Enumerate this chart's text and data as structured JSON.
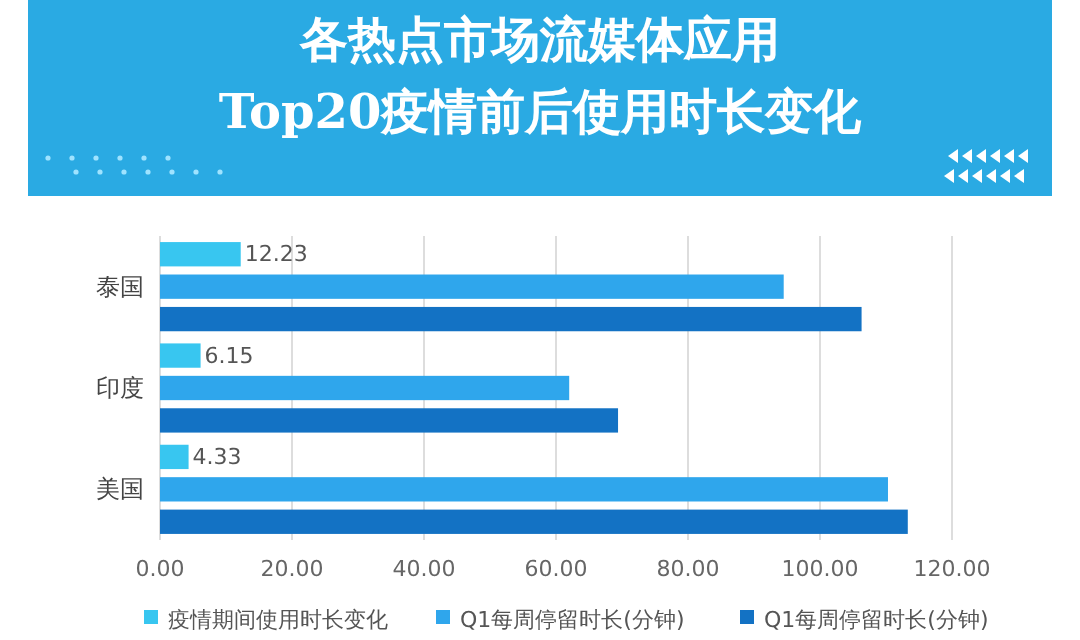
{
  "chart_data": {
    "type": "bar",
    "orientation": "horizontal",
    "title": "各热点市场流媒体应用",
    "subtitle": "Top20疫情前后使用时长变化",
    "categories": [
      "泰国",
      "印度",
      "美国"
    ],
    "series": [
      {
        "name": "疫情期间使用时长变化",
        "color": "#38c6f0",
        "values": [
          12.23,
          6.15,
          4.33
        ],
        "value_labels": [
          "12.23",
          "6.15",
          "4.33"
        ]
      },
      {
        "name": "Q1每周停留时长(分钟)",
        "color": "#2fa6ec",
        "values": [
          94.5,
          62,
          110.3
        ]
      },
      {
        "name": "Q1每周停留时长(分钟)",
        "color": "#1372c4",
        "values": [
          106.3,
          69.4,
          113.3
        ]
      }
    ],
    "xlim": [
      0,
      120
    ],
    "xticks": [
      {
        "value": 0,
        "label": "0.00"
      },
      {
        "value": 20,
        "label": "20.00"
      },
      {
        "value": 40,
        "label": "40.00"
      },
      {
        "value": 60,
        "label": "60.00"
      },
      {
        "value": 80,
        "label": "80.00"
      },
      {
        "value": 100,
        "label": "100.00"
      },
      {
        "value": 120,
        "label": "120.00"
      }
    ],
    "grid": "x",
    "legend": "bottom"
  }
}
